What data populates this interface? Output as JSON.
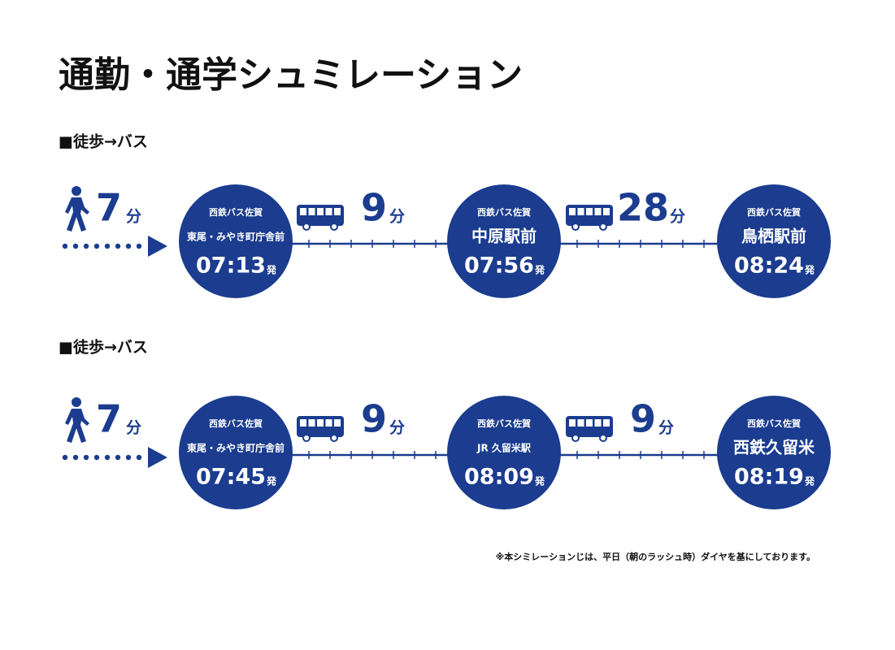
{
  "title": "通勤・通学シュミレーション",
  "routes": [
    {
      "label": "■徒歩→バス",
      "walk": {
        "minutes": "7",
        "unit": "分"
      },
      "stops": [
        {
          "operator": "西鉄バス佐賀",
          "name": "東尾・みやき町庁舎前",
          "time": "07:13",
          "suffix": "発"
        },
        {
          "operator": "西鉄バス佐賀",
          "name": "中原駅前",
          "time": "07:56",
          "suffix": "発"
        },
        {
          "operator": "西鉄バス佐賀",
          "name": "鳥栖駅前",
          "time": "08:24",
          "suffix": "発"
        }
      ],
      "legs": [
        {
          "minutes": "9",
          "unit": "分"
        },
        {
          "minutes": "28",
          "unit": "分"
        }
      ]
    },
    {
      "label": "■徒歩→バス",
      "walk": {
        "minutes": "7",
        "unit": "分"
      },
      "stops": [
        {
          "operator": "西鉄バス佐賀",
          "name": "東尾・みやき町庁舎前",
          "time": "07:45",
          "suffix": "発"
        },
        {
          "operator": "西鉄バス佐賀",
          "name": "JR 久留米駅",
          "time": "08:09",
          "suffix": "発"
        },
        {
          "operator": "西鉄バス佐賀",
          "name": "西鉄久留米",
          "time": "08:19",
          "suffix": "発"
        }
      ],
      "legs": [
        {
          "minutes": "9",
          "unit": "分"
        },
        {
          "minutes": "9",
          "unit": "分"
        }
      ]
    }
  ],
  "note": "※本シミレーションじは、平日（朝のラッシュ時）ダイヤを基にしております。"
}
